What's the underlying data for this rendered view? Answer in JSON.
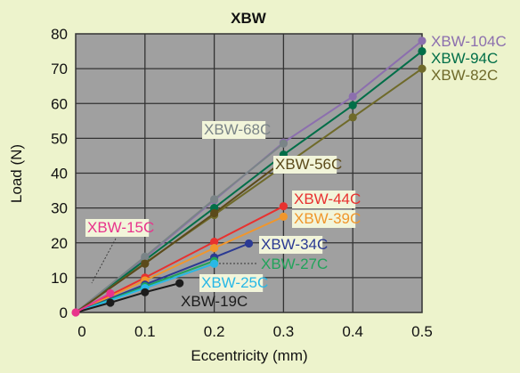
{
  "chart_data": {
    "type": "line",
    "title": "XBW",
    "xlabel": "Eccentricity (mm)",
    "ylabel": "Load (N)",
    "xlim": [
      0,
      0.5
    ],
    "ylim": [
      0,
      80
    ],
    "xticks": [
      "0",
      "0.1",
      "0.2",
      "0.3",
      "0.4",
      "0.5"
    ],
    "yticks": [
      "0",
      "10",
      "20",
      "30",
      "40",
      "50",
      "60",
      "70",
      "80"
    ],
    "grid": true,
    "plot_background": "#a0a0a0",
    "series": [
      {
        "name": "XBW-104C",
        "color": "#8c6fae",
        "x": [
          0,
          0.1,
          0.2,
          0.3,
          0.4,
          0.5
        ],
        "y": [
          0,
          15.7,
          32.2,
          48.8,
          62.0,
          78.0
        ]
      },
      {
        "name": "XBW-94C",
        "color": "#006e48",
        "x": [
          0,
          0.1,
          0.2,
          0.3,
          0.4,
          0.5
        ],
        "y": [
          0,
          15.0,
          30.0,
          45.3,
          59.5,
          75.0
        ]
      },
      {
        "name": "XBW-82C",
        "color": "#6f6a2a",
        "x": [
          0,
          0.1,
          0.2,
          0.3,
          0.4,
          0.5
        ],
        "y": [
          0,
          14.2,
          28.0,
          42.0,
          56.0,
          70.0
        ]
      },
      {
        "name": "XBW-68C",
        "color": "#7a8487",
        "x": [
          0,
          0.1,
          0.2,
          0.3
        ],
        "y": [
          0,
          16.0,
          32.5,
          48.5
        ]
      },
      {
        "name": "XBW-56C",
        "color": "#5b4a1a",
        "x": [
          0,
          0.1,
          0.2,
          0.3
        ],
        "y": [
          0,
          14.0,
          28.5,
          43.5
        ]
      },
      {
        "name": "XBW-44C",
        "color": "#e8312f",
        "x": [
          0,
          0.1,
          0.2,
          0.3
        ],
        "y": [
          0,
          10.0,
          20.3,
          30.5
        ]
      },
      {
        "name": "XBW-39C",
        "color": "#f0962c",
        "x": [
          0,
          0.1,
          0.2,
          0.3
        ],
        "y": [
          0,
          9.2,
          18.5,
          27.5
        ]
      },
      {
        "name": "XBW-34C",
        "color": "#2b3a93",
        "x": [
          0,
          0.1,
          0.2,
          0.25
        ],
        "y": [
          0,
          8.0,
          15.8,
          19.8
        ]
      },
      {
        "name": "XBW-27C",
        "color": "#21a35a",
        "x": [
          0,
          0.1,
          0.2
        ],
        "y": [
          0,
          7.5,
          14.8
        ]
      },
      {
        "name": "XBW-25C",
        "color": "#28b8e6",
        "x": [
          0,
          0.1,
          0.2
        ],
        "y": [
          0,
          7.0,
          14.0
        ]
      },
      {
        "name": "XBW-19C",
        "color": "#1c1c1c",
        "x": [
          0,
          0.05,
          0.1,
          0.15
        ],
        "y": [
          0,
          2.8,
          5.8,
          8.4
        ]
      },
      {
        "name": "XBW-15C",
        "color": "#e8338c",
        "x": [
          0,
          0.05
        ],
        "y": [
          0,
          5.5
        ]
      }
    ]
  }
}
